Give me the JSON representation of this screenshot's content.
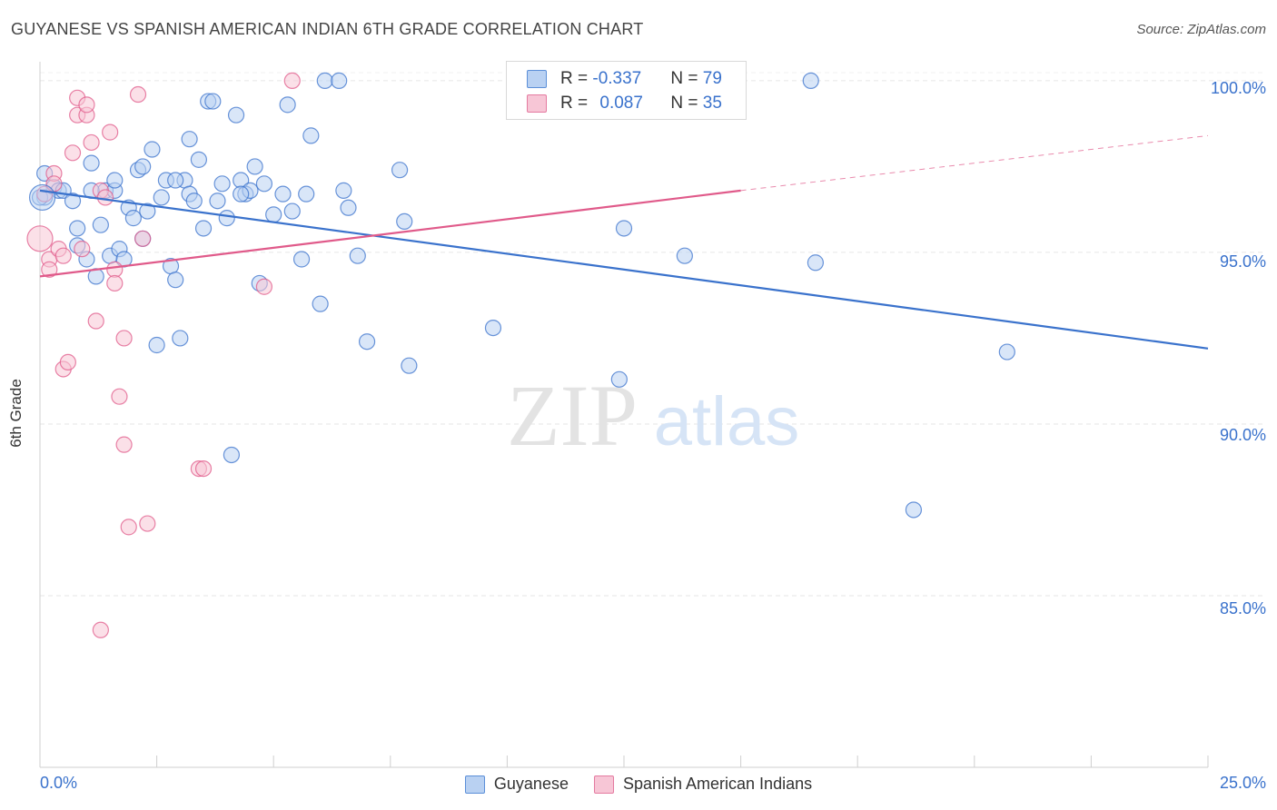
{
  "title": "GUYANESE VS SPANISH AMERICAN INDIAN 6TH GRADE CORRELATION CHART",
  "source": "Source: ZipAtlas.com",
  "watermark": {
    "zip": "ZIP",
    "atlas": "atlas"
  },
  "legend": {
    "rows": [
      {
        "r_label": "R = ",
        "r_value": "-0.337",
        "n_label": "N = ",
        "n_value": "79",
        "color": "#5b8fd8",
        "fill": "#b9d1f2"
      },
      {
        "r_label": "R = ",
        "r_value": "0.087",
        "n_label": "N = ",
        "n_value": "35",
        "color": "#e47aa0",
        "fill": "#f7c6d6"
      }
    ]
  },
  "chart_data": {
    "type": "scatter",
    "title": "GUYANESE VS SPANISH AMERICAN INDIAN 6TH GRADE CORRELATION CHART",
    "xlabel": "",
    "ylabel": "6th Grade",
    "xlim": [
      0,
      25
    ],
    "ylim": [
      80.0,
      100.5
    ],
    "x_tick_labels": [
      "0.0%",
      "25.0%"
    ],
    "y_ticks": [
      85,
      90,
      95,
      100
    ],
    "y_tick_labels": [
      "85.0%",
      "90.0%",
      "95.0%",
      "100.0%"
    ],
    "grid": true,
    "series": [
      {
        "name": "Guyanese",
        "color": "#3a72cc",
        "fill": "#b9d1f2",
        "trend": {
          "x": [
            0,
            25
          ],
          "y": [
            96.8,
            92.2
          ]
        },
        "points": [
          [
            0.1,
            97.3
          ],
          [
            0.1,
            96.6
          ],
          [
            0.3,
            96.9
          ],
          [
            0.4,
            96.8
          ],
          [
            0.5,
            96.8
          ],
          [
            0.7,
            96.5
          ],
          [
            0.8,
            95.7
          ],
          [
            0.8,
            95.2
          ],
          [
            1.0,
            94.8
          ],
          [
            1.1,
            97.6
          ],
          [
            1.2,
            94.3
          ],
          [
            1.3,
            95.8
          ],
          [
            1.4,
            96.8
          ],
          [
            1.5,
            94.9
          ],
          [
            1.6,
            96.8
          ],
          [
            1.6,
            97.1
          ],
          [
            1.7,
            95.1
          ],
          [
            1.8,
            94.8
          ],
          [
            1.9,
            96.3
          ],
          [
            2.0,
            96.0
          ],
          [
            2.1,
            97.4
          ],
          [
            2.2,
            95.4
          ],
          [
            2.2,
            97.5
          ],
          [
            2.3,
            96.2
          ],
          [
            2.4,
            98.0
          ],
          [
            2.5,
            92.3
          ],
          [
            2.6,
            96.6
          ],
          [
            2.7,
            97.1
          ],
          [
            2.8,
            94.6
          ],
          [
            2.9,
            94.2
          ],
          [
            3.0,
            92.5
          ],
          [
            3.1,
            97.1
          ],
          [
            3.2,
            96.7
          ],
          [
            3.2,
            98.3
          ],
          [
            3.3,
            96.5
          ],
          [
            3.4,
            97.7
          ],
          [
            3.5,
            95.7
          ],
          [
            3.6,
            99.4
          ],
          [
            3.7,
            99.4
          ],
          [
            3.8,
            96.5
          ],
          [
            3.9,
            97.0
          ],
          [
            4.0,
            96.0
          ],
          [
            4.1,
            89.1
          ],
          [
            4.2,
            99.0
          ],
          [
            4.3,
            97.1
          ],
          [
            4.4,
            96.7
          ],
          [
            4.5,
            96.8
          ],
          [
            4.6,
            97.5
          ],
          [
            4.7,
            94.1
          ],
          [
            4.8,
            97.0
          ],
          [
            5.0,
            96.1
          ],
          [
            5.2,
            96.7
          ],
          [
            5.3,
            99.3
          ],
          [
            5.4,
            96.2
          ],
          [
            5.6,
            94.8
          ],
          [
            5.7,
            96.7
          ],
          [
            5.8,
            98.4
          ],
          [
            6.0,
            93.5
          ],
          [
            6.1,
            100.0
          ],
          [
            6.4,
            100.0
          ],
          [
            6.5,
            96.8
          ],
          [
            6.6,
            96.3
          ],
          [
            6.8,
            94.9
          ],
          [
            7.0,
            92.4
          ],
          [
            7.7,
            97.4
          ],
          [
            7.8,
            95.9
          ],
          [
            7.9,
            91.7
          ],
          [
            9.7,
            92.8
          ],
          [
            12.4,
            91.3
          ],
          [
            12.5,
            95.7
          ],
          [
            13.8,
            94.9
          ],
          [
            16.5,
            100.0
          ],
          [
            16.6,
            94.7
          ],
          [
            18.7,
            87.5
          ],
          [
            20.7,
            92.1
          ],
          [
            0.0,
            96.6
          ],
          [
            1.1,
            96.8
          ],
          [
            2.9,
            97.1
          ],
          [
            4.3,
            96.7
          ]
        ]
      },
      {
        "name": "Spanish American Indians",
        "color": "#e05a8a",
        "fill": "#f7c6d6",
        "trend": {
          "x": [
            0,
            15
          ],
          "y": [
            94.3,
            96.8
          ]
        },
        "trend_dashed": {
          "x": [
            15,
            25
          ],
          "y": [
            96.8,
            98.4
          ]
        },
        "points": [
          [
            0.0,
            95.4
          ],
          [
            0.1,
            96.7
          ],
          [
            0.2,
            94.8
          ],
          [
            0.2,
            94.5
          ],
          [
            0.3,
            97.3
          ],
          [
            0.3,
            97.0
          ],
          [
            0.4,
            95.1
          ],
          [
            0.5,
            94.9
          ],
          [
            0.5,
            91.6
          ],
          [
            0.6,
            91.8
          ],
          [
            0.7,
            97.9
          ],
          [
            0.8,
            99.0
          ],
          [
            0.8,
            99.5
          ],
          [
            0.9,
            95.1
          ],
          [
            1.0,
            99.0
          ],
          [
            1.0,
            99.3
          ],
          [
            1.1,
            98.2
          ],
          [
            1.2,
            93.0
          ],
          [
            1.3,
            96.8
          ],
          [
            1.3,
            84.0
          ],
          [
            1.4,
            96.6
          ],
          [
            1.5,
            98.5
          ],
          [
            1.6,
            94.5
          ],
          [
            1.6,
            94.1
          ],
          [
            1.7,
            90.8
          ],
          [
            1.8,
            89.4
          ],
          [
            1.8,
            92.5
          ],
          [
            1.9,
            87.0
          ],
          [
            2.1,
            99.6
          ],
          [
            2.2,
            95.4
          ],
          [
            2.3,
            87.1
          ],
          [
            3.4,
            88.7
          ],
          [
            3.5,
            88.7
          ],
          [
            4.8,
            94.0
          ],
          [
            5.4,
            100.0
          ]
        ]
      }
    ]
  }
}
